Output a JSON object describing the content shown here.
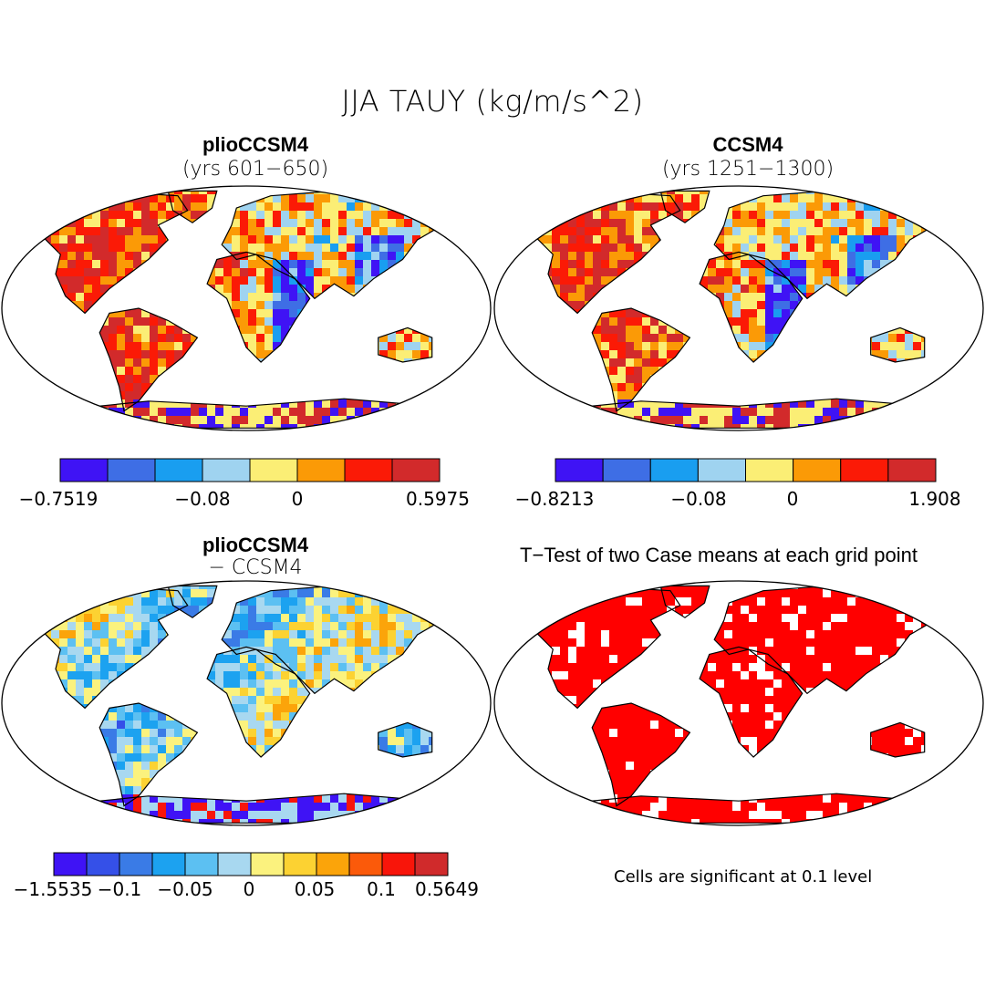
{
  "figure": {
    "title": "JJA TAUY (kg/m/s^2)"
  },
  "panels": [
    {
      "title": "plioCCSM4",
      "subtitle": "(yrs 601-650)",
      "colorbar": {
        "colors": [
          "#3f13f5",
          "#3e6ee5",
          "#199ef0",
          "#9fd3f0",
          "#fbee75",
          "#fb9a06",
          "#fb1a06",
          "#d22a2b"
        ],
        "labels": [
          "-0.7519",
          "-0.08",
          "0",
          "0.5975"
        ]
      }
    },
    {
      "title": "CCSM4",
      "subtitle": "(yrs 1251-1300)",
      "colorbar": {
        "colors": [
          "#3f13f5",
          "#3e6ee5",
          "#199ef0",
          "#9fd3f0",
          "#fbee75",
          "#fb9a06",
          "#fb1a06",
          "#d22a2b"
        ],
        "labels": [
          "-0.8213",
          "-0.08",
          "0",
          "1.908"
        ]
      }
    },
    {
      "title": "plioCCSM4",
      "subtitle": "- CCSM4",
      "colorbar": {
        "colors": [
          "#3f13f5",
          "#3550e8",
          "#3a7be6",
          "#1ca2f0",
          "#5cc0f2",
          "#a8d8f0",
          "#fbf27e",
          "#fcd232",
          "#fba40a",
          "#fb5a0a",
          "#f8150a",
          "#d02a2b"
        ],
        "labels": [
          "-1.5535",
          "-0.1",
          "-0.05",
          "0",
          "0.05",
          "0.1",
          "0.5649"
        ]
      }
    },
    {
      "title": "T-Test of two Case means at each grid point",
      "note": "Cells are significant at 0.1 level",
      "fill_color": "#ff0000"
    }
  ]
}
